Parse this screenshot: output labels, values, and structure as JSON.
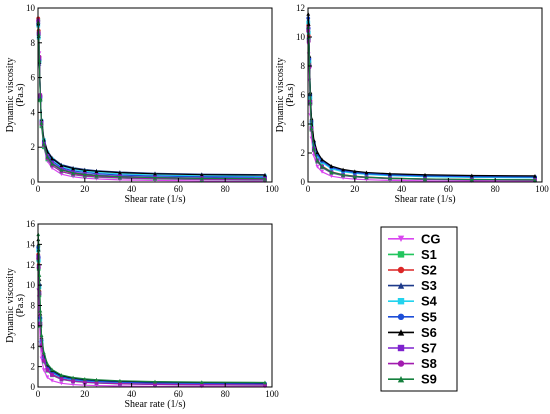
{
  "chart_data": [
    {
      "type": "line",
      "xlabel": "Shear rate (1/s)",
      "ylabel_line1": "Dynamic viscosity",
      "ylabel_line2": "(Pa.s)",
      "xlim": [
        0,
        100
      ],
      "ylim": [
        0,
        10
      ],
      "xticks": [
        0,
        20,
        40,
        60,
        80,
        100
      ],
      "yticks": [
        0,
        2,
        4,
        6,
        8,
        10
      ],
      "x": [
        0.1,
        0.3,
        0.6,
        1,
        1.5,
        2.5,
        4,
        6,
        10,
        15,
        20,
        25,
        35,
        50,
        70,
        97
      ],
      "series": [
        {
          "name": "CG",
          "values": [
            9.2,
            8.6,
            7.4,
            5.0,
            3.3,
            2.0,
            1.2,
            0.8,
            0.45,
            0.3,
            0.22,
            0.18,
            0.12,
            0.09,
            0.06,
            0.05
          ]
        },
        {
          "name": "S1",
          "values": [
            9.3,
            8.6,
            7.0,
            4.7,
            3.2,
            2.0,
            1.3,
            0.95,
            0.6,
            0.42,
            0.33,
            0.28,
            0.22,
            0.17,
            0.14,
            0.12
          ]
        },
        {
          "name": "S2",
          "values": [
            9.4,
            8.7,
            7.2,
            4.9,
            3.4,
            2.2,
            1.45,
            1.05,
            0.7,
            0.5,
            0.4,
            0.34,
            0.27,
            0.22,
            0.18,
            0.15
          ]
        },
        {
          "name": "S3",
          "values": [
            9.0,
            8.3,
            6.8,
            4.8,
            3.6,
            2.5,
            1.8,
            1.4,
            1.0,
            0.82,
            0.72,
            0.65,
            0.57,
            0.5,
            0.45,
            0.42
          ]
        },
        {
          "name": "S4",
          "values": [
            9.0,
            8.3,
            6.9,
            4.9,
            3.5,
            2.4,
            1.7,
            1.3,
            0.9,
            0.72,
            0.62,
            0.55,
            0.47,
            0.4,
            0.35,
            0.32
          ]
        },
        {
          "name": "S5",
          "values": [
            9.1,
            8.5,
            7.0,
            4.9,
            3.5,
            2.3,
            1.6,
            1.2,
            0.82,
            0.64,
            0.55,
            0.48,
            0.4,
            0.34,
            0.3,
            0.27
          ]
        },
        {
          "name": "S6",
          "values": [
            9.1,
            8.4,
            6.9,
            4.8,
            3.6,
            2.45,
            1.75,
            1.35,
            0.95,
            0.78,
            0.68,
            0.62,
            0.54,
            0.47,
            0.42,
            0.4
          ]
        },
        {
          "name": "S7",
          "values": [
            9.2,
            8.5,
            7.1,
            4.9,
            3.4,
            2.2,
            1.5,
            1.1,
            0.75,
            0.56,
            0.46,
            0.4,
            0.33,
            0.27,
            0.23,
            0.2
          ]
        },
        {
          "name": "S8",
          "values": [
            9.3,
            8.6,
            7.2,
            5.0,
            3.3,
            2.1,
            1.35,
            0.95,
            0.6,
            0.44,
            0.35,
            0.3,
            0.24,
            0.19,
            0.16,
            0.14
          ]
        },
        {
          "name": "S9",
          "values": [
            9.2,
            8.5,
            7.0,
            4.8,
            3.4,
            2.2,
            1.45,
            1.05,
            0.7,
            0.52,
            0.43,
            0.37,
            0.3,
            0.25,
            0.21,
            0.19
          ]
        }
      ]
    },
    {
      "type": "line",
      "xlabel": "Shear rate (1/s)",
      "ylabel_line1": "Dynamic viscosity",
      "ylabel_line2": "(Pa.s)",
      "xlim": [
        0,
        100
      ],
      "ylim": [
        0,
        12
      ],
      "xticks": [
        0,
        20,
        40,
        60,
        80,
        100
      ],
      "yticks": [
        0,
        2,
        4,
        6,
        8,
        10,
        12
      ],
      "x": [
        0.1,
        0.3,
        0.6,
        1,
        1.5,
        2.5,
        4,
        6,
        10,
        15,
        20,
        25,
        35,
        50,
        70,
        97
      ],
      "series": [
        {
          "name": "CG",
          "values": [
            9.5,
            8.8,
            7.0,
            4.6,
            3.0,
            1.8,
            1.05,
            0.7,
            0.4,
            0.27,
            0.2,
            0.16,
            0.11,
            0.08,
            0.06,
            0.05
          ]
        },
        {
          "name": "S1",
          "values": [
            10.5,
            9.8,
            8.0,
            5.4,
            3.6,
            2.2,
            1.4,
            1.0,
            0.62,
            0.44,
            0.35,
            0.3,
            0.23,
            0.18,
            0.15,
            0.13
          ]
        },
        {
          "name": "S2",
          "values": [
            10.8,
            10.1,
            8.2,
            5.6,
            3.8,
            2.35,
            1.5,
            1.1,
            0.7,
            0.5,
            0.4,
            0.34,
            0.27,
            0.21,
            0.17,
            0.15
          ]
        },
        {
          "name": "S3",
          "values": [
            11.2,
            10.5,
            8.4,
            5.9,
            4.2,
            2.8,
            2.0,
            1.5,
            1.05,
            0.82,
            0.7,
            0.62,
            0.53,
            0.46,
            0.41,
            0.38
          ]
        },
        {
          "name": "S4",
          "values": [
            11.0,
            10.3,
            8.3,
            5.8,
            4.0,
            2.6,
            1.8,
            1.35,
            0.92,
            0.7,
            0.6,
            0.52,
            0.44,
            0.37,
            0.32,
            0.29
          ]
        },
        {
          "name": "S5",
          "values": [
            11.3,
            10.6,
            8.5,
            6.0,
            4.2,
            2.75,
            1.9,
            1.45,
            1.0,
            0.77,
            0.65,
            0.58,
            0.49,
            0.42,
            0.37,
            0.34
          ]
        },
        {
          "name": "S6",
          "values": [
            11.6,
            10.9,
            8.7,
            6.2,
            4.4,
            2.9,
            2.05,
            1.55,
            1.1,
            0.86,
            0.74,
            0.66,
            0.57,
            0.5,
            0.45,
            0.42
          ]
        },
        {
          "name": "S7",
          "values": [
            10.6,
            9.9,
            8.0,
            5.5,
            3.7,
            2.3,
            1.5,
            1.05,
            0.68,
            0.48,
            0.38,
            0.32,
            0.25,
            0.2,
            0.16,
            0.14
          ]
        },
        {
          "name": "S8",
          "values": [
            10.4,
            9.7,
            7.9,
            5.4,
            3.6,
            2.2,
            1.42,
            1.0,
            0.64,
            0.45,
            0.36,
            0.31,
            0.24,
            0.19,
            0.15,
            0.13
          ]
        },
        {
          "name": "S9",
          "values": [
            10.7,
            10.0,
            8.1,
            5.5,
            3.7,
            2.3,
            1.48,
            1.05,
            0.68,
            0.49,
            0.39,
            0.33,
            0.26,
            0.21,
            0.17,
            0.15
          ]
        }
      ]
    },
    {
      "type": "line",
      "xlabel": "Shear rate (1/s)",
      "ylabel_line1": "Dynamic viscosity",
      "ylabel_line2": "(Pa.s)",
      "xlim": [
        0,
        100
      ],
      "ylim": [
        0,
        16
      ],
      "xticks": [
        0,
        20,
        40,
        60,
        80,
        100
      ],
      "yticks": [
        0,
        2,
        4,
        6,
        8,
        10,
        12,
        14,
        16
      ],
      "x": [
        0.1,
        0.3,
        0.6,
        1,
        1.5,
        2.5,
        4,
        6,
        10,
        15,
        20,
        25,
        35,
        50,
        70,
        97
      ],
      "series": [
        {
          "name": "CG",
          "values": [
            9.5,
            8.8,
            6.8,
            4.3,
            2.8,
            1.65,
            0.95,
            0.62,
            0.36,
            0.24,
            0.18,
            0.14,
            0.1,
            0.07,
            0.05,
            0.04
          ]
        },
        {
          "name": "S1",
          "values": [
            12.5,
            11.6,
            9.0,
            6.0,
            4.0,
            2.5,
            1.6,
            1.15,
            0.75,
            0.55,
            0.45,
            0.39,
            0.31,
            0.25,
            0.21,
            0.18
          ]
        },
        {
          "name": "S2",
          "values": [
            13.0,
            12.0,
            9.4,
            6.3,
            4.2,
            2.7,
            1.75,
            1.25,
            0.82,
            0.62,
            0.51,
            0.44,
            0.36,
            0.3,
            0.25,
            0.22
          ]
        },
        {
          "name": "S3",
          "values": [
            14.0,
            13.0,
            10.2,
            6.9,
            4.7,
            3.1,
            2.1,
            1.55,
            1.05,
            0.82,
            0.69,
            0.61,
            0.52,
            0.45,
            0.4,
            0.37
          ]
        },
        {
          "name": "S4",
          "values": [
            13.4,
            12.4,
            9.8,
            6.6,
            4.4,
            2.85,
            1.9,
            1.4,
            0.92,
            0.7,
            0.58,
            0.5,
            0.42,
            0.35,
            0.3,
            0.27
          ]
        },
        {
          "name": "S5",
          "values": [
            13.7,
            12.7,
            10.0,
            6.8,
            4.6,
            3.0,
            2.0,
            1.48,
            0.98,
            0.76,
            0.64,
            0.56,
            0.47,
            0.4,
            0.35,
            0.32
          ]
        },
        {
          "name": "S6",
          "values": [
            14.5,
            13.5,
            10.6,
            7.2,
            4.9,
            3.25,
            2.2,
            1.65,
            1.12,
            0.88,
            0.75,
            0.67,
            0.57,
            0.5,
            0.45,
            0.42
          ]
        },
        {
          "name": "S7",
          "values": [
            12.8,
            11.8,
            9.2,
            6.2,
            4.1,
            2.6,
            1.7,
            1.2,
            0.78,
            0.58,
            0.48,
            0.41,
            0.33,
            0.27,
            0.23,
            0.2
          ]
        },
        {
          "name": "S8",
          "values": [
            12.6,
            11.7,
            9.1,
            6.1,
            4.05,
            2.55,
            1.65,
            1.18,
            0.77,
            0.57,
            0.47,
            0.4,
            0.32,
            0.26,
            0.22,
            0.19
          ]
        },
        {
          "name": "S9",
          "values": [
            15.0,
            14.0,
            11.0,
            7.5,
            5.1,
            3.4,
            2.3,
            1.72,
            1.18,
            0.93,
            0.8,
            0.71,
            0.61,
            0.53,
            0.48,
            0.45
          ]
        }
      ]
    }
  ],
  "legend": {
    "placement": "bottom-right",
    "entries": [
      {
        "name": "CG",
        "color": "#d946ef",
        "marker": "triangle-down"
      },
      {
        "name": "S1",
        "color": "#22c55e",
        "marker": "square"
      },
      {
        "name": "S2",
        "color": "#dc2626",
        "marker": "circle"
      },
      {
        "name": "S3",
        "color": "#1e3a8a",
        "marker": "triangle-up"
      },
      {
        "name": "S4",
        "color": "#22d3ee",
        "marker": "square"
      },
      {
        "name": "S5",
        "color": "#1d4ed8",
        "marker": "circle"
      },
      {
        "name": "S6",
        "color": "#000000",
        "marker": "triangle-up"
      },
      {
        "name": "S7",
        "color": "#7e22ce",
        "marker": "square"
      },
      {
        "name": "S8",
        "color": "#a21caf",
        "marker": "circle"
      },
      {
        "name": "S9",
        "color": "#15803d",
        "marker": "triangle-up"
      }
    ]
  }
}
